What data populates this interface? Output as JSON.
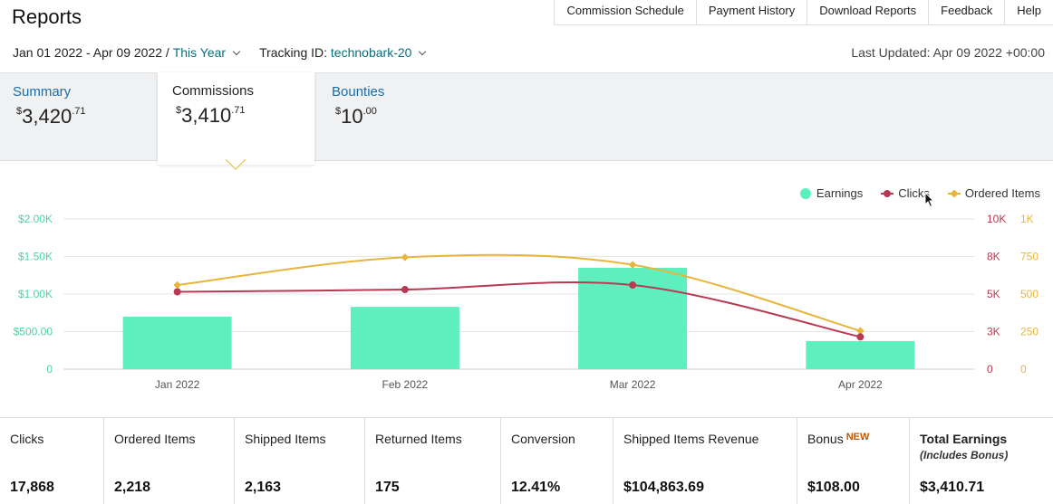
{
  "page": {
    "title": "Reports"
  },
  "topnav": [
    "Commission Schedule",
    "Payment History",
    "Download Reports",
    "Feedback",
    "Help"
  ],
  "filters": {
    "date_range": "Jan 01 2022 - Apr 09 2022 /",
    "period": "This Year",
    "tracking_label": "Tracking ID:",
    "tracking_id": "technobark-20"
  },
  "last_updated": "Last Updated: Apr 09 2022 +00:00",
  "tabs": {
    "summary": {
      "label": "Summary",
      "currency": "$",
      "whole": "3,420",
      "cents": ".71"
    },
    "commissions": {
      "label": "Commissions",
      "currency": "$",
      "whole": "3,410",
      "cents": ".71"
    },
    "bounties": {
      "label": "Bounties",
      "currency": "$",
      "whole": "10",
      "cents": ".00"
    }
  },
  "legend": {
    "earnings": "Earnings",
    "clicks": "Clicks",
    "ordered_items": "Ordered Items"
  },
  "colors": {
    "earnings": "#5eefbe",
    "clicks": "#b83a52",
    "ordered_items": "#e8b53c",
    "left_axis": "#4fd1a3",
    "clicks_axis": "#b83a52",
    "items_axis": "#e8b53c",
    "link": "#1a6da8"
  },
  "chart_data": {
    "type": "bar",
    "categories": [
      "Jan 2022",
      "Feb 2022",
      "Mar 2022",
      "Apr 2022"
    ],
    "series": [
      {
        "name": "Earnings",
        "type": "bar",
        "axis": "left",
        "values": [
          700,
          830,
          1350,
          375
        ]
      },
      {
        "name": "Clicks",
        "type": "line",
        "axis": "right1",
        "values": [
          5150,
          5300,
          5600,
          2150
        ]
      },
      {
        "name": "Ordered Items",
        "type": "line",
        "axis": "right2",
        "values": [
          560,
          745,
          695,
          255
        ]
      }
    ],
    "left_axis": {
      "ticks": [
        "0",
        "$500.00",
        "$1.00K",
        "$1.50K",
        "$2.00K"
      ],
      "ylim": [
        0,
        2000
      ]
    },
    "right_axis_clicks": {
      "ticks": [
        "0",
        "3K",
        "5K",
        "8K",
        "10K"
      ],
      "ylim": [
        0,
        10000
      ]
    },
    "right_axis_items": {
      "ticks": [
        "0",
        "250",
        "500",
        "750",
        "1K"
      ],
      "ylim": [
        0,
        1000
      ]
    },
    "grid": true,
    "legend_position": "top-right"
  },
  "stats": [
    {
      "label": "Clicks",
      "value": "17,868"
    },
    {
      "label": "Ordered Items",
      "value": "2,218"
    },
    {
      "label": "Shipped Items",
      "value": "2,163"
    },
    {
      "label": "Returned Items",
      "value": "175"
    },
    {
      "label": "Conversion",
      "value": "12.41%"
    },
    {
      "label": "Shipped Items Revenue",
      "value": "$104,863.69"
    },
    {
      "label": "Bonus",
      "badge": "NEW",
      "value": "$108.00"
    },
    {
      "label": "Total Earnings",
      "sublabel": "(Includes Bonus)",
      "value": "$3,410.71"
    }
  ]
}
